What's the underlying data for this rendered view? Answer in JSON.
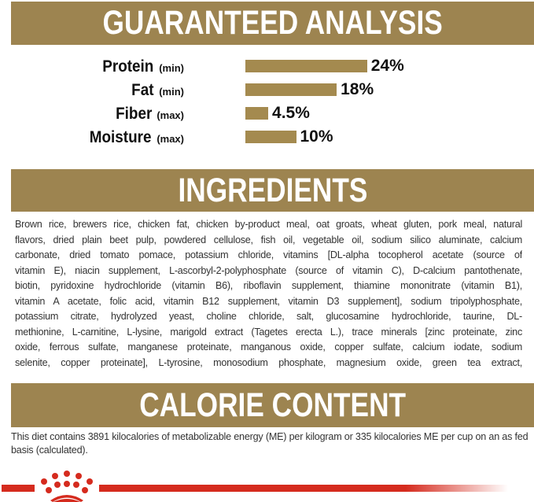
{
  "colors": {
    "gold": "#9d8450",
    "bar": "#a48a4f",
    "brand_red": "#d52b1e"
  },
  "guaranteed_analysis": {
    "title": "GUARANTEED ANALYSIS",
    "items": [
      {
        "name": "Protein",
        "qualifier": "(min)",
        "value": 24,
        "label": "24%"
      },
      {
        "name": "Fat",
        "qualifier": "(min)",
        "value": 18,
        "label": "18%"
      },
      {
        "name": "Fiber",
        "qualifier": "(max)",
        "value": 4.5,
        "label": "4.5%"
      },
      {
        "name": "Moisture",
        "qualifier": "(max)",
        "value": 10,
        "label": "10%"
      }
    ]
  },
  "ingredients": {
    "title": "INGREDIENTS",
    "lines": [
      "Brown rice, brewers rice, chicken fat, chicken by-product meal, oat groats, wheat gluten, pork meal, natural",
      "flavors, dried plain beet pulp, powdered cellulose, fish oil, vegetable oil, sodium silico aluminate, calcium",
      "carbonate, dried tomato pomace, potassium chloride, vitamins [DL-alpha tocopherol acetate (source of",
      "vitamin E), niacin supplement, L-ascorbyl-2-polyphosphate (source of vitamin C), D-calcium pantothenate,",
      "biotin, pyridoxine hydrochloride (vitamin B6), riboflavin supplement, thiamine mononitrate (vitamin B1),",
      "vitamin A acetate, folic acid, vitamin B12 supplement, vitamin D3 supplement], sodium tripolyphosphate,",
      "potassium citrate, hydrolyzed yeast, choline chloride, salt, glucosamine hydrochloride, taurine, DL-",
      "methionine, L-carnitine, L-lysine, marigold extract (Tagetes erecta L.), trace minerals [zinc proteinate, zinc",
      "oxide, ferrous sulfate, manganese proteinate, manganous oxide, copper sulfate, calcium iodate, sodium",
      "selenite, copper proteinate], L-tyrosine, monosodium phosphate, magnesium oxide, green tea extract,"
    ]
  },
  "calorie_content": {
    "title": "CALORIE CONTENT",
    "text": "This diet contains 3891 kilocalories of metabolizable energy (ME) per kilogram or 335 kilocalories ME per cup on an as fed basis (calculated)."
  },
  "footer": {
    "logo_icon": "royal-canin-crown-icon"
  }
}
